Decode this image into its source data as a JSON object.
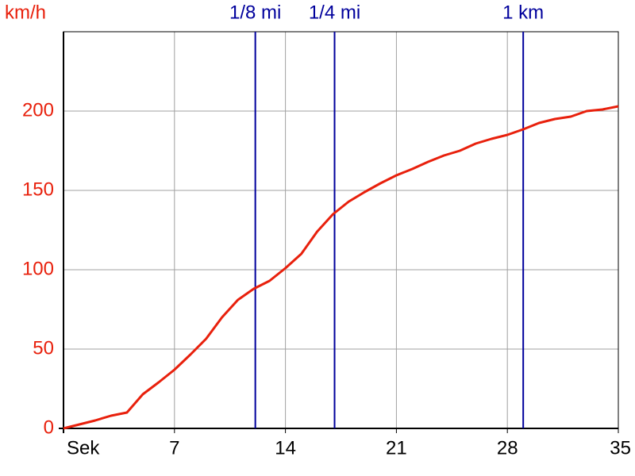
{
  "chart_data": {
    "type": "line",
    "y_label": "km/h",
    "x": [
      0,
      1,
      2,
      3,
      4,
      5,
      6,
      7,
      8,
      9,
      10,
      11,
      12,
      13,
      14,
      15,
      16,
      17,
      18,
      19,
      20,
      21,
      22,
      23,
      24,
      25,
      26,
      27,
      28,
      29,
      30,
      31,
      32,
      33,
      34,
      35
    ],
    "values": [
      0,
      2.5,
      5,
      8,
      10,
      21.5,
      29,
      37,
      46.5,
      56.5,
      70,
      81,
      88,
      93,
      101,
      110,
      124,
      135,
      143,
      149,
      154.5,
      159.5,
      163.5,
      168,
      172,
      175,
      179.5,
      182.5,
      185,
      188.5,
      192.5,
      195,
      196.5,
      200,
      201,
      203
    ],
    "color": "#e8200c",
    "xlim": [
      0,
      35
    ],
    "ylim": [
      0,
      250
    ],
    "xticks": [
      {
        "value": 0,
        "label": "Sek"
      },
      7,
      14,
      21,
      28,
      35
    ],
    "yticks": [
      0,
      50,
      100,
      150,
      200
    ],
    "grid": true,
    "marker_color": "#00009c",
    "markers": [
      {
        "label": "1/8 mi",
        "x": 12.1
      },
      {
        "label": "1/4 mi",
        "x": 17.1
      },
      {
        "label": "1 km",
        "x": 29
      }
    ]
  }
}
